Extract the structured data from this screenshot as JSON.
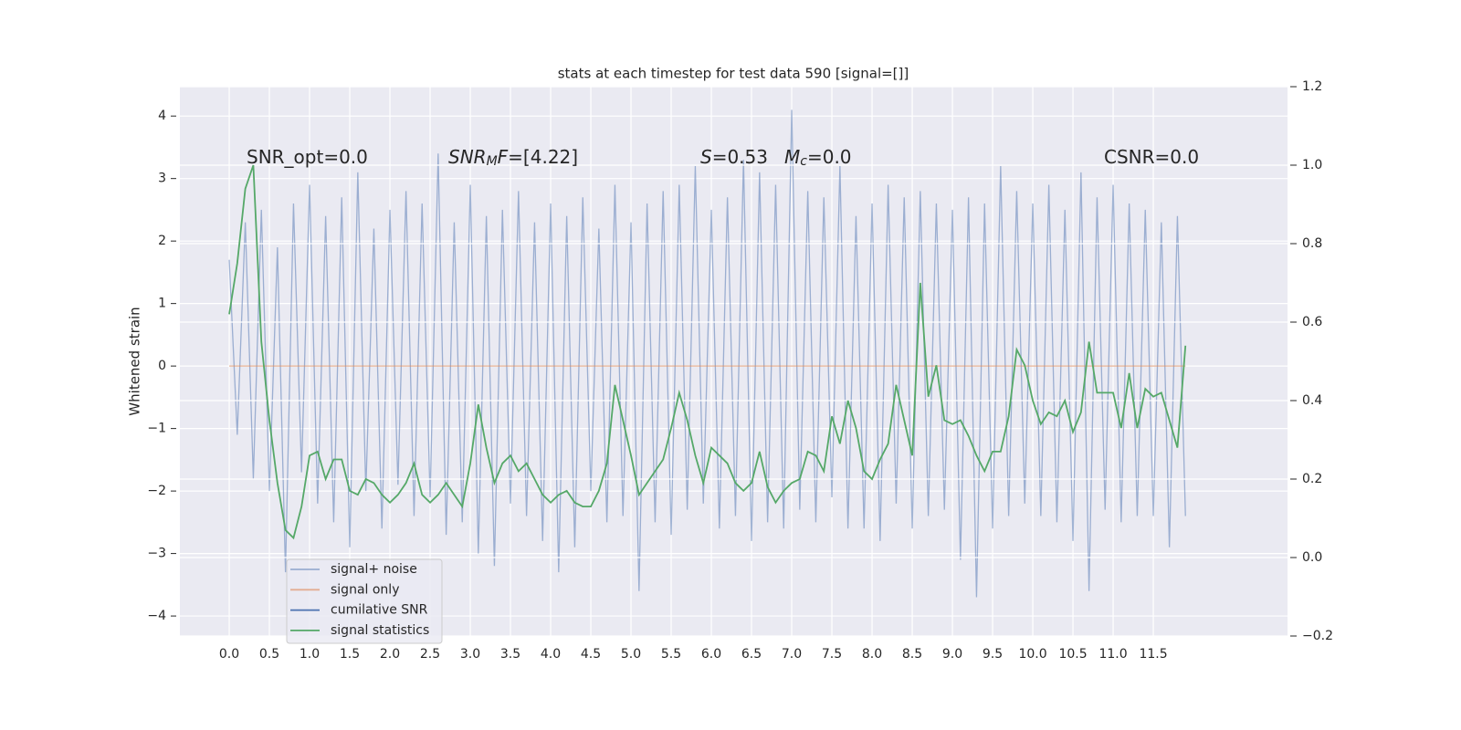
{
  "chart_data": {
    "type": "line",
    "title": "stats at each timestep for test data 590 [signal=[]]",
    "ylabel": "Whitened strain",
    "xlim": [
      -0.614,
      13.17
    ],
    "ylim": [
      -4.32,
      4.47
    ],
    "y2lim": [
      -0.2,
      1.2
    ],
    "grid": true,
    "legend": "lower left",
    "xticks": [
      {
        "value": 0,
        "label": "0.0"
      },
      {
        "value": 0.5,
        "label": "0.5"
      },
      {
        "value": 1,
        "label": "1.0"
      },
      {
        "value": 1.5,
        "label": "1.5"
      },
      {
        "value": 2,
        "label": "2.0"
      },
      {
        "value": 2.5,
        "label": "2.5"
      },
      {
        "value": 3,
        "label": "3.0"
      },
      {
        "value": 3.5,
        "label": "3.5"
      },
      {
        "value": 4,
        "label": "4.0"
      },
      {
        "value": 4.5,
        "label": "4.5"
      },
      {
        "value": 5,
        "label": "5.0"
      },
      {
        "value": 5.5,
        "label": "5.5"
      },
      {
        "value": 6,
        "label": "6.0"
      },
      {
        "value": 6.5,
        "label": "6.5"
      },
      {
        "value": 7,
        "label": "7.0"
      },
      {
        "value": 7.5,
        "label": "7.5"
      },
      {
        "value": 8,
        "label": "8.0"
      },
      {
        "value": 8.5,
        "label": "8.5"
      },
      {
        "value": 9,
        "label": "9.0"
      },
      {
        "value": 9.5,
        "label": "9.5"
      },
      {
        "value": 10,
        "label": "10.0"
      },
      {
        "value": 10.5,
        "label": "10.5"
      },
      {
        "value": 11,
        "label": "11.0"
      },
      {
        "value": 11.5,
        "label": "11.5"
      }
    ],
    "yticks": [
      {
        "value": -4,
        "label": "−4"
      },
      {
        "value": -3,
        "label": "−3"
      },
      {
        "value": -2,
        "label": "−2"
      },
      {
        "value": -1,
        "label": "−1"
      },
      0,
      1,
      2,
      3,
      4
    ],
    "y2ticks": [
      {
        "value": -0.2,
        "label": "−0.2"
      },
      {
        "value": 0,
        "label": "0.0"
      },
      0.2,
      0.4,
      0.6,
      0.8,
      {
        "value": 1,
        "label": "1.0"
      },
      1.2
    ],
    "annotations": [
      [
        {
          "text": "SNR_opt=0.0"
        }
      ],
      [
        {
          "text": "SNR",
          "italic": true
        },
        {
          "text": "M",
          "italic": true,
          "sub": true
        },
        {
          "text": "F",
          "italic": true
        },
        {
          "text": "=[4.22]"
        }
      ],
      [
        {
          "text": "S",
          "italic": true
        },
        {
          "text": "=0.53"
        }
      ],
      [
        {
          "text": "M",
          "italic": true
        },
        {
          "text": "c",
          "italic": true,
          "sub": true
        },
        {
          "text": "=0.0"
        }
      ],
      [
        {
          "text": "CSNR=0.0"
        }
      ]
    ],
    "x": [
      0,
      0.1,
      0.2,
      0.3,
      0.4,
      0.5,
      0.6,
      0.7,
      0.8,
      0.9,
      1,
      1.1,
      1.2,
      1.3,
      1.4,
      1.5,
      1.6,
      1.7,
      1.8,
      1.9,
      2,
      2.1,
      2.2,
      2.3,
      2.4,
      2.5,
      2.6,
      2.7,
      2.8,
      2.9,
      3,
      3.1,
      3.2,
      3.3,
      3.4,
      3.5,
      3.6,
      3.7,
      3.8,
      3.9,
      4,
      4.1,
      4.2,
      4.3,
      4.4,
      4.5,
      4.6,
      4.7,
      4.8,
      4.9,
      5,
      5.1,
      5.2,
      5.3,
      5.4,
      5.5,
      5.6,
      5.7,
      5.8,
      5.9,
      6,
      6.1,
      6.2,
      6.3,
      6.4,
      6.5,
      6.6,
      6.7,
      6.8,
      6.9,
      7,
      7.1,
      7.2,
      7.3,
      7.4,
      7.5,
      7.6,
      7.7,
      7.8,
      7.9,
      8,
      8.1,
      8.2,
      8.3,
      8.4,
      8.5,
      8.6,
      8.7,
      8.8,
      8.9,
      9,
      9.1,
      9.2,
      9.3,
      9.4,
      9.5,
      9.6,
      9.7,
      9.8,
      9.9,
      10,
      10.1,
      10.2,
      10.3,
      10.4,
      10.5,
      10.6,
      10.7,
      10.8,
      10.9,
      11,
      11.1,
      11.2,
      11.3,
      11.4,
      11.5,
      11.6,
      11.7,
      11.8,
      11.9
    ],
    "series": [
      {
        "name": "signal+ noise",
        "color": "#4c72b0",
        "alpha": 0.5,
        "values": [
          1.7,
          -1.1,
          2.3,
          -1.8,
          2.5,
          -2.0,
          1.9,
          -3.3,
          2.6,
          -1.7,
          2.9,
          -2.2,
          2.4,
          -2.5,
          2.7,
          -2.9,
          3.1,
          -2.0,
          2.2,
          -2.6,
          2.5,
          -1.9,
          2.8,
          -2.4,
          2.6,
          -2.1,
          3.4,
          -2.7,
          2.3,
          -2.5,
          2.9,
          -3.0,
          2.4,
          -3.2,
          2.5,
          -2.2,
          2.8,
          -2.4,
          2.3,
          -2.8,
          2.6,
          -3.3,
          2.4,
          -2.9,
          2.7,
          -2.0,
          2.2,
          -2.5,
          2.9,
          -2.4,
          2.3,
          -3.6,
          2.6,
          -2.5,
          2.8,
          -2.7,
          2.9,
          -2.3,
          3.2,
          -2.2,
          2.5,
          -2.6,
          2.7,
          -2.4,
          3.3,
          -2.8,
          3.1,
          -2.5,
          2.9,
          -2.6,
          4.1,
          -2.3,
          2.8,
          -2.5,
          2.7,
          -2.1,
          3.2,
          -2.6,
          2.4,
          -2.6,
          2.6,
          -2.8,
          2.9,
          -2.2,
          2.7,
          -2.6,
          2.8,
          -2.4,
          2.6,
          -2.3,
          2.5,
          -3.1,
          2.7,
          -3.7,
          2.6,
          -2.6,
          3.2,
          -2.4,
          2.8,
          -2.2,
          2.6,
          -2.4,
          2.9,
          -2.5,
          2.5,
          -2.8,
          3.1,
          -3.6,
          2.7,
          -2.3,
          2.9,
          -2.5,
          2.6,
          -2.4,
          2.5,
          -2.4,
          2.3,
          -2.9,
          2.4,
          -2.4
        ]
      },
      {
        "name": "signal only",
        "color": "#dd8452",
        "alpha": 0.6,
        "values": [
          0,
          0,
          0,
          0,
          0,
          0,
          0,
          0,
          0,
          0,
          0,
          0,
          0,
          0,
          0,
          0,
          0,
          0,
          0,
          0,
          0,
          0,
          0,
          0,
          0,
          0,
          0,
          0,
          0,
          0,
          0,
          0,
          0,
          0,
          0,
          0,
          0,
          0,
          0,
          0,
          0,
          0,
          0,
          0,
          0,
          0,
          0,
          0,
          0,
          0,
          0,
          0,
          0,
          0,
          0,
          0,
          0,
          0,
          0,
          0,
          0,
          0,
          0,
          0,
          0,
          0,
          0,
          0,
          0,
          0,
          0,
          0,
          0,
          0,
          0,
          0,
          0,
          0,
          0,
          0,
          0,
          0,
          0,
          0,
          0,
          0,
          0,
          0,
          0,
          0,
          0,
          0,
          0,
          0,
          0,
          0,
          0,
          0,
          0,
          0,
          0,
          0,
          0,
          0,
          0,
          0,
          0,
          0,
          0,
          0,
          0,
          0,
          0,
          0,
          0,
          0,
          0,
          0,
          0,
          0
        ]
      },
      {
        "name": "cumilative SNR",
        "color": "#4c72b0",
        "alpha": 1,
        "axis": "y2",
        "values": [
          null,
          null,
          null,
          null,
          null,
          null,
          null,
          null,
          null,
          null,
          null,
          null,
          null,
          null,
          null,
          null,
          null,
          null,
          null,
          null,
          null,
          null,
          null,
          null,
          null,
          null,
          null,
          null,
          null,
          null,
          null,
          null,
          null,
          null,
          null,
          null,
          null,
          null,
          null,
          null,
          null,
          null,
          null,
          null,
          null,
          null,
          null,
          null,
          null,
          null,
          null,
          null,
          null,
          null,
          null,
          null,
          null,
          null,
          null,
          null,
          null,
          null,
          null,
          null,
          null,
          null,
          null,
          null,
          null,
          null,
          null,
          null,
          null,
          null,
          null,
          null,
          null,
          null,
          null,
          null,
          null,
          null,
          null,
          null,
          null,
          null,
          null,
          null,
          null,
          null,
          null,
          null,
          null,
          null,
          null,
          null,
          null,
          null,
          null,
          null,
          null,
          null,
          null,
          null,
          null,
          null,
          null,
          null,
          null,
          null,
          null,
          null,
          null,
          null,
          null,
          null,
          null,
          null,
          null,
          null
        ]
      },
      {
        "name": "signal statistics",
        "color": "#55a868",
        "alpha": 1,
        "axis": "y2",
        "values": [
          0.62,
          0.75,
          0.94,
          1.0,
          0.55,
          0.35,
          0.19,
          0.07,
          0.05,
          0.13,
          0.26,
          0.27,
          0.2,
          0.25,
          0.25,
          0.17,
          0.16,
          0.2,
          0.19,
          0.16,
          0.14,
          0.16,
          0.19,
          0.24,
          0.16,
          0.14,
          0.16,
          0.19,
          0.16,
          0.13,
          0.24,
          0.39,
          0.28,
          0.19,
          0.24,
          0.26,
          0.22,
          0.24,
          0.2,
          0.16,
          0.14,
          0.16,
          0.17,
          0.14,
          0.13,
          0.13,
          0.17,
          0.24,
          0.44,
          0.35,
          0.26,
          0.16,
          0.19,
          0.22,
          0.25,
          0.33,
          0.42,
          0.35,
          0.26,
          0.19,
          0.28,
          0.26,
          0.24,
          0.19,
          0.17,
          0.19,
          0.27,
          0.18,
          0.14,
          0.17,
          0.19,
          0.2,
          0.27,
          0.26,
          0.22,
          0.36,
          0.29,
          0.4,
          0.33,
          0.22,
          0.2,
          0.25,
          0.29,
          0.44,
          0.35,
          0.26,
          0.7,
          0.41,
          0.49,
          0.35,
          0.34,
          0.35,
          0.31,
          0.26,
          0.22,
          0.27,
          0.27,
          0.36,
          0.53,
          0.49,
          0.4,
          0.34,
          0.37,
          0.36,
          0.4,
          0.32,
          0.37,
          0.55,
          0.42,
          0.42,
          0.42,
          0.33,
          0.47,
          0.33,
          0.43,
          0.41,
          0.42,
          0.35,
          0.28,
          0.54
        ]
      }
    ]
  }
}
